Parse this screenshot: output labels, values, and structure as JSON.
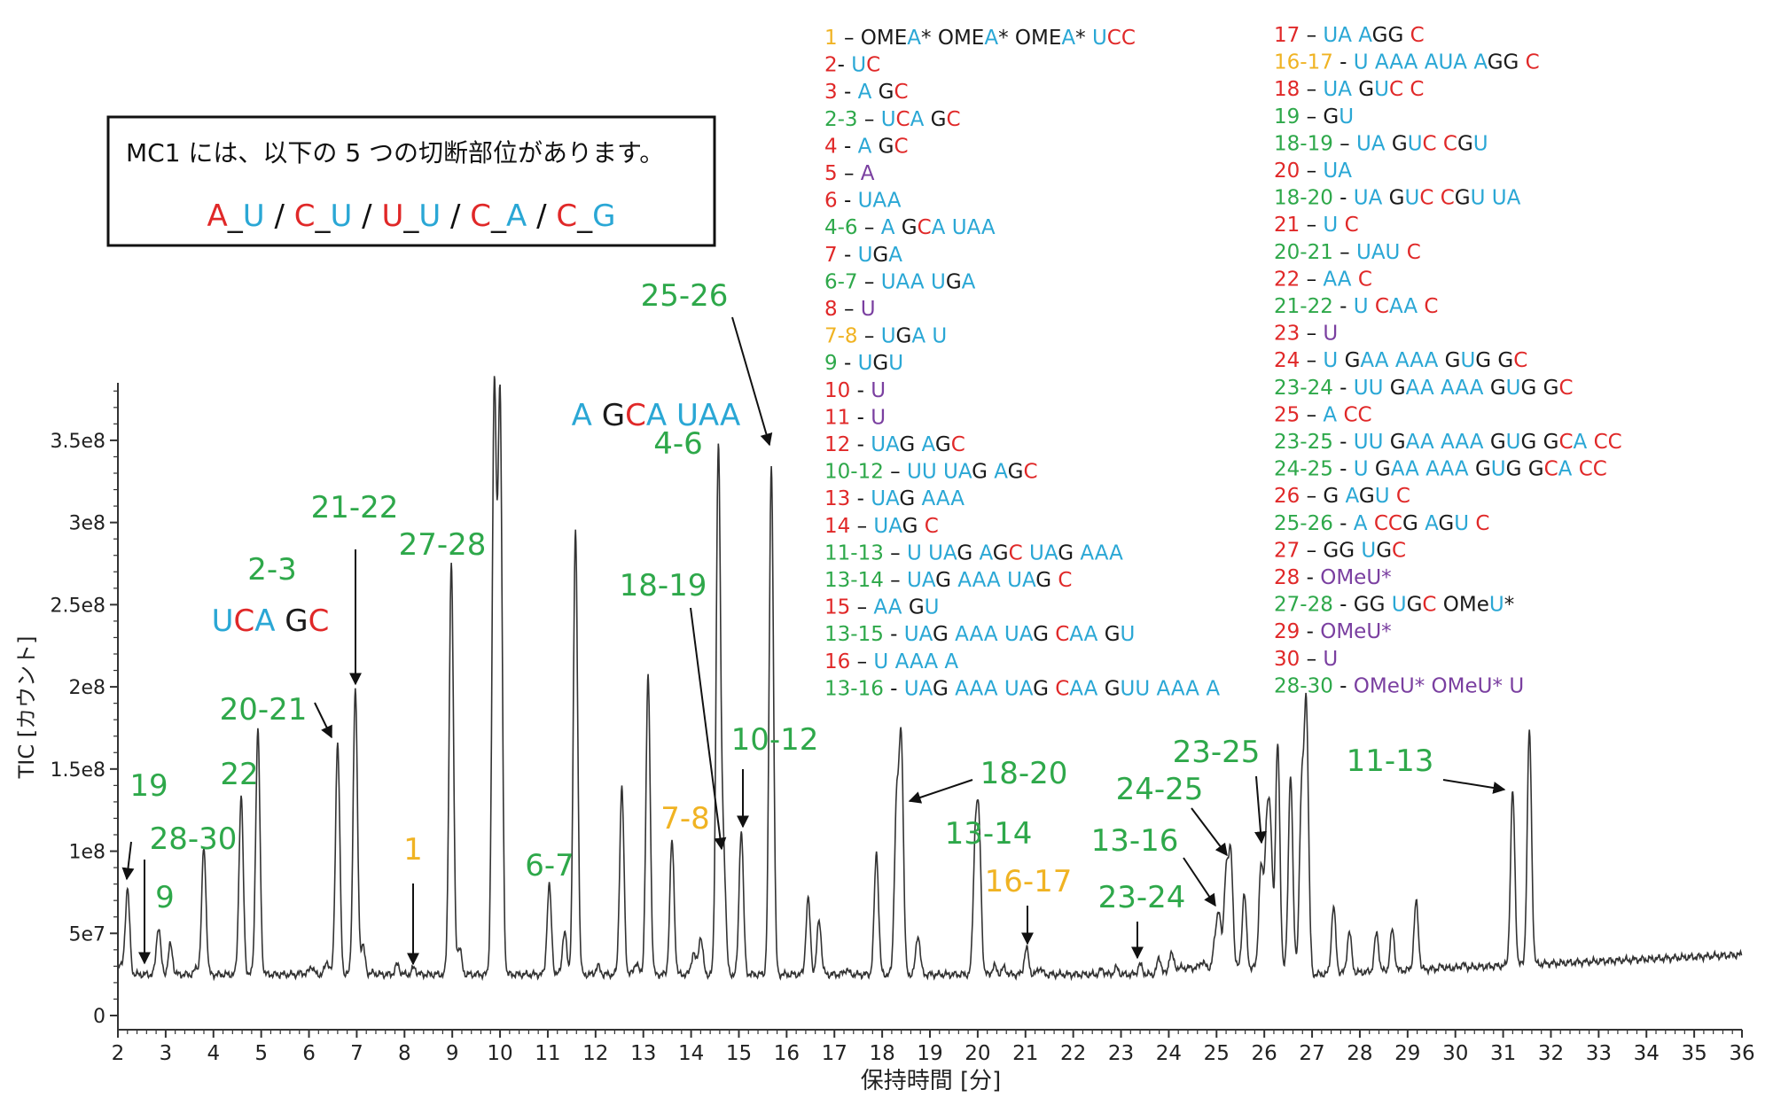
{
  "colors": {
    "A": "#2aa7d5",
    "U": "#2aa7d5",
    "G": "#1a1a1a",
    "C": "#e02828",
    "mod": "#7a3fa0",
    "green": "#2ea84a",
    "red": "#e02828",
    "yellow": "#f0b323",
    "purple": "#7a3fa0",
    "trace": "#333333"
  },
  "info_box": {
    "title": "MC1 には、以下の 5 つの切断部位があります。",
    "sites": [
      [
        {
          "t": "A",
          "c": "red"
        },
        {
          "t": "_",
          "c": "G"
        },
        {
          "t": "U",
          "c": "U"
        }
      ],
      [
        {
          "t": "C",
          "c": "red"
        },
        {
          "t": "_",
          "c": "G"
        },
        {
          "t": "U",
          "c": "U"
        }
      ],
      [
        {
          "t": "U",
          "c": "red"
        },
        {
          "t": "_",
          "c": "G"
        },
        {
          "t": "U",
          "c": "U"
        }
      ],
      [
        {
          "t": "C",
          "c": "red"
        },
        {
          "t": "_",
          "c": "G"
        },
        {
          "t": "A",
          "c": "A"
        }
      ],
      [
        {
          "t": "C",
          "c": "red"
        },
        {
          "t": "_",
          "c": "G"
        },
        {
          "t": "G",
          "c": "A"
        }
      ]
    ]
  },
  "legend": [
    {
      "id": "1",
      "color": "yellow",
      "seq": "OMEA* OMEA* OMEA* UCC",
      "sep": " – "
    },
    {
      "id": "2",
      "color": "red",
      "seq": "UC",
      "sep": "- "
    },
    {
      "id": "3",
      "color": "red",
      "seq": "A GC",
      "sep": " - "
    },
    {
      "id": "2-3",
      "color": "green",
      "seq": "UCA GC",
      "sep": " – "
    },
    {
      "id": "4",
      "color": "red",
      "seq": "A GC",
      "sep": " - "
    },
    {
      "id": "5",
      "color": "red",
      "seq": "A",
      "sep": " – ",
      "mod": true
    },
    {
      "id": "6",
      "color": "red",
      "seq": "UAA",
      "sep": " - "
    },
    {
      "id": "4-6",
      "color": "green",
      "seq": "A GCA UAA",
      "sep": " – "
    },
    {
      "id": "7",
      "color": "red",
      "seq": "UGA",
      "sep": " - "
    },
    {
      "id": "6-7",
      "color": "green",
      "seq": "UAA UGA",
      "sep": " – "
    },
    {
      "id": "8",
      "color": "red",
      "seq": "U",
      "sep": " – ",
      "mod": true
    },
    {
      "id": "7-8",
      "color": "yellow",
      "seq": "UGA U",
      "sep": " – "
    },
    {
      "id": "9",
      "color": "green",
      "seq": "UGU",
      "sep": " - "
    },
    {
      "id": "10",
      "color": "red",
      "seq": "U",
      "sep": " - ",
      "mod": true
    },
    {
      "id": "11",
      "color": "red",
      "seq": "U",
      "sep": " - ",
      "mod": true
    },
    {
      "id": "12",
      "color": "red",
      "seq": "UAG AGC",
      "sep": " - "
    },
    {
      "id": "10-12",
      "color": "green",
      "seq": "UU UAG AGC",
      "sep": " – "
    },
    {
      "id": "13",
      "color": "red",
      "seq": "UAG AAA",
      "sep": " - "
    },
    {
      "id": "14",
      "color": "red",
      "seq": "UAG C",
      "sep": " – "
    },
    {
      "id": "11-13",
      "color": "green",
      "seq": "U UAG AGC UAG AAA",
      "sep": " – "
    },
    {
      "id": "13-14",
      "color": "green",
      "seq": "UAG AAA UAG C",
      "sep": " – "
    },
    {
      "id": "15",
      "color": "red",
      "seq": "AA GU",
      "sep": " – "
    },
    {
      "id": "13-15",
      "color": "green",
      "seq": "UAG AAA UAG CAA GU",
      "sep": " - "
    },
    {
      "id": "16",
      "color": "red",
      "seq": "U AAA A",
      "sep": " – "
    },
    {
      "id": "13-16",
      "color": "green",
      "seq": "UAG AAA UAG CAA GUU AAA A",
      "sep": " - "
    },
    {
      "id": "17",
      "color": "red",
      "seq": "UA AGG C",
      "sep": " – "
    },
    {
      "id": "16-17",
      "color": "yellow",
      "seq": "U AAA AUA AGG C",
      "sep": " - "
    },
    {
      "id": "18",
      "color": "red",
      "seq": "UA GUC C",
      "sep": " – "
    },
    {
      "id": "19",
      "color": "green",
      "seq": "GU",
      "sep": " – "
    },
    {
      "id": "18-19",
      "color": "green",
      "seq": "UA GUC CGU",
      "sep": " – "
    },
    {
      "id": "20",
      "color": "red",
      "seq": "UA",
      "sep": " – "
    },
    {
      "id": "18-20",
      "color": "green",
      "seq": "UA GUC CGU UA",
      "sep": " - "
    },
    {
      "id": "21",
      "color": "red",
      "seq": "U C",
      "sep": " – "
    },
    {
      "id": "20-21",
      "color": "green",
      "seq": "UAU C",
      "sep": " – "
    },
    {
      "id": "22",
      "color": "red",
      "seq": "AA C",
      "sep": " – "
    },
    {
      "id": "21-22",
      "color": "green",
      "seq": "U CAA C",
      "sep": " - "
    },
    {
      "id": "23",
      "color": "red",
      "seq": "U",
      "sep": " – ",
      "mod": true
    },
    {
      "id": "24",
      "color": "red",
      "seq": "U GAA AAA GUG GC",
      "sep": " – "
    },
    {
      "id": "23-24",
      "color": "green",
      "seq": "UU GAA AAA GUG GC",
      "sep": " - "
    },
    {
      "id": "25",
      "color": "red",
      "seq": "A CC",
      "sep": " – "
    },
    {
      "id": "23-25",
      "color": "green",
      "seq": "UU GAA AAA GUG GCA CC",
      "sep": " - "
    },
    {
      "id": "24-25",
      "color": "green",
      "seq": "U GAA AAA GUG GCA CC",
      "sep": " - "
    },
    {
      "id": "26",
      "color": "red",
      "seq": "G AGU C",
      "sep": " – "
    },
    {
      "id": "25-26",
      "color": "green",
      "seq": "A CCG AGU C",
      "sep": " - "
    },
    {
      "id": "27",
      "color": "red",
      "seq": "GG UGC",
      "sep": " – "
    },
    {
      "id": "28",
      "color": "red",
      "seq": "OMeU*",
      "sep": " - ",
      "mod": true
    },
    {
      "id": "27-28",
      "color": "green",
      "seq": "GG UGC OMeU*",
      "sep": " - "
    },
    {
      "id": "29",
      "color": "red",
      "seq": "OMeU*",
      "sep": " - ",
      "mod": true
    },
    {
      "id": "30",
      "color": "red",
      "seq": "U",
      "sep": " – ",
      "mod": true
    },
    {
      "id": "28-30",
      "color": "green",
      "seq": "OMeU* OMeU* U",
      "sep": " - ",
      "mod": true
    }
  ],
  "chart_data": {
    "type": "line",
    "title": "",
    "xlabel": "保持時間 [分]",
    "ylabel": "TIC [カウント]",
    "xlim": [
      2,
      36
    ],
    "ylim": [
      0,
      385000000.0
    ],
    "x_ticks": [
      2,
      3,
      4,
      5,
      6,
      7,
      8,
      9,
      10,
      11,
      12,
      13,
      14,
      15,
      16,
      17,
      18,
      19,
      20,
      21,
      22,
      23,
      24,
      25,
      26,
      27,
      28,
      29,
      30,
      31,
      32,
      33,
      34,
      35,
      36
    ],
    "y_ticks": [
      0,
      50000000.0,
      100000000.0,
      150000000.0,
      200000000.0,
      250000000.0,
      300000000.0,
      350000000.0
    ],
    "y_tick_labels": [
      "0",
      "5e7",
      "1e8",
      "1.5e8",
      "2e8",
      "2.5e8",
      "3e8",
      "3.5e8"
    ],
    "baseline": 25000000.0,
    "peaks": [
      [
        2.2,
        77000000.0
      ],
      [
        2.55,
        25000000.0
      ],
      [
        2.85,
        54000000.0
      ],
      [
        3.1,
        43000000.0
      ],
      [
        3.65,
        29000000.0
      ],
      [
        3.8,
        102000000.0
      ],
      [
        4.58,
        133000000.0
      ],
      [
        4.93,
        173000000.0
      ],
      [
        5.85,
        26000000.0
      ],
      [
        6.05,
        30000000.0
      ],
      [
        6.38,
        33000000.0
      ],
      [
        6.6,
        166000000.0
      ],
      [
        6.97,
        198000000.0
      ],
      [
        7.13,
        42000000.0
      ],
      [
        7.35,
        26000000.0
      ],
      [
        7.85,
        31000000.0
      ],
      [
        8.2,
        29000000.0
      ],
      [
        8.98,
        275000000.0
      ],
      [
        9.15,
        41000000.0
      ],
      [
        9.88,
        378000000.0
      ],
      [
        10.0,
        373000000.0
      ],
      [
        11.03,
        79000000.0
      ],
      [
        11.35,
        51000000.0
      ],
      [
        11.58,
        294000000.0
      ],
      [
        12.05,
        30000000.0
      ],
      [
        12.55,
        138000000.0
      ],
      [
        12.85,
        32000000.0
      ],
      [
        13.1,
        206000000.0
      ],
      [
        13.6,
        106000000.0
      ],
      [
        14.05,
        38000000.0
      ],
      [
        14.2,
        48000000.0
      ],
      [
        14.57,
        345000000.0
      ],
      [
        14.68,
        97000000.0
      ],
      [
        15.05,
        113000000.0
      ],
      [
        15.68,
        335000000.0
      ],
      [
        16.45,
        71000000.0
      ],
      [
        16.68,
        58000000.0
      ],
      [
        17.25,
        28000000.0
      ],
      [
        17.88,
        99000000.0
      ],
      [
        18.3,
        125000000.0
      ],
      [
        18.4,
        166000000.0
      ],
      [
        18.75,
        49000000.0
      ],
      [
        19.95,
        102000000.0
      ],
      [
        20.03,
        105000000.0
      ],
      [
        20.35,
        30000000.0
      ],
      [
        20.55,
        29000000.0
      ],
      [
        21.02,
        41000000.0
      ],
      [
        21.3,
        29000000.0
      ],
      [
        22.6,
        28000000.0
      ],
      [
        22.9,
        29000000.0
      ],
      [
        23.4,
        31000000.0
      ],
      [
        23.8,
        35000000.0
      ],
      [
        24.05,
        38000000.0
      ],
      [
        24.7,
        33000000.0
      ],
      [
        24.97,
        43000000.0
      ],
      [
        25.05,
        61000000.0
      ],
      [
        25.2,
        87000000.0
      ],
      [
        25.3,
        96000000.0
      ],
      [
        25.58,
        74000000.0
      ],
      [
        25.93,
        90000000.0
      ],
      [
        26.05,
        107000000.0
      ],
      [
        26.13,
        104000000.0
      ],
      [
        26.28,
        165000000.0
      ],
      [
        26.55,
        147000000.0
      ],
      [
        26.78,
        131000000.0
      ],
      [
        26.88,
        186000000.0
      ],
      [
        27.45,
        66000000.0
      ],
      [
        27.78,
        51000000.0
      ],
      [
        28.35,
        50000000.0
      ],
      [
        28.68,
        52000000.0
      ],
      [
        29.18,
        69000000.0
      ],
      [
        29.72,
        30000000.0
      ],
      [
        30.15,
        31000000.0
      ],
      [
        31.2,
        136000000.0
      ],
      [
        31.55,
        173000000.0
      ]
    ],
    "annotations": [
      {
        "text": "19",
        "color": "green",
        "x": 2.2,
        "y": 77000000.0
      },
      {
        "text": "28-30",
        "color": "green",
        "x": 2.55,
        "y": 25000000.0
      },
      {
        "text": "9",
        "color": "green",
        "x": 2.85,
        "y": 54000000.0
      },
      {
        "text": "22",
        "color": "green",
        "x": 4.58,
        "y": 133000000.0
      },
      {
        "text": "20-21",
        "color": "green",
        "x": 6.6,
        "y": 166000000.0
      },
      {
        "text": "2-3",
        "color": "green",
        "x": 4.93,
        "y": 173000000.0
      },
      {
        "text": "21-22",
        "color": "green",
        "x": 6.97,
        "y": 198000000.0
      },
      {
        "text": "1",
        "color": "yellow",
        "x": 8.2,
        "y": 29000000.0
      },
      {
        "text": "27-28",
        "color": "green",
        "x": 8.98,
        "y": 275000000.0
      },
      {
        "text": "6-7",
        "color": "green",
        "x": 11.03,
        "y": 79000000.0
      },
      {
        "text": "18-19",
        "color": "green",
        "x": 14.68,
        "y": 97000000.0
      },
      {
        "text": "7-8",
        "color": "yellow",
        "x": 14.68,
        "y": 97000000.0
      },
      {
        "text": "4-6",
        "color": "green",
        "x": 14.57,
        "y": 345000000.0
      },
      {
        "text": "10-12",
        "color": "green",
        "x": 15.05,
        "y": 113000000.0
      },
      {
        "text": "25-26",
        "color": "green",
        "x": 15.68,
        "y": 335000000.0
      },
      {
        "text": "18-20",
        "color": "green",
        "x": 18.4,
        "y": 166000000.0
      },
      {
        "text": "13-14",
        "color": "green",
        "x": 20.03,
        "y": 105000000.0
      },
      {
        "text": "16-17",
        "color": "yellow",
        "x": 21.02,
        "y": 41000000.0
      },
      {
        "text": "23-24",
        "color": "green",
        "x": 23.4,
        "y": 31000000.0
      },
      {
        "text": "13-16",
        "color": "green",
        "x": 25.05,
        "y": 61000000.0
      },
      {
        "text": "24-25",
        "color": "green",
        "x": 25.3,
        "y": 96000000.0
      },
      {
        "text": "23-25",
        "color": "green",
        "x": 26.05,
        "y": 107000000.0
      },
      {
        "text": "11-13",
        "color": "green",
        "x": 31.2,
        "y": 136000000.0
      }
    ],
    "seq_annotations": [
      {
        "seq": "UCA GC",
        "near": "2-3"
      },
      {
        "seq": "A GCA UAA",
        "near": "4-6"
      }
    ]
  }
}
